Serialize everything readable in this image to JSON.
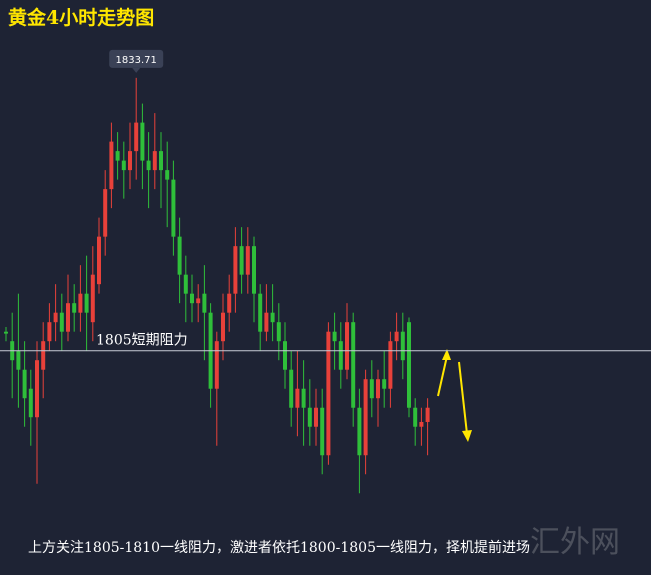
{
  "chart_data": {
    "type": "candlestick",
    "title": "黄金4小时走势图",
    "high_marker": 1833.71,
    "resistance": {
      "value": 1805,
      "label": "1805短期阻力"
    },
    "annotation": "上方关注1805-1810一线阻力，激进者依托1800-1805一线阻力，择机提前进场",
    "watermark": "汇外网",
    "up_color": "#e8413a",
    "down_color": "#2fbf3a",
    "ylim": [
      1781.4,
      1841.9
    ],
    "open": [
      1807,
      1806,
      1805,
      1803,
      1801,
      1798,
      1803,
      1806,
      1808,
      1809,
      1807,
      1810,
      1809,
      1811,
      1808,
      1812,
      1817,
      1822,
      1826,
      1825,
      1824,
      1826,
      1829,
      1825,
      1824,
      1826,
      1824,
      1823,
      1817,
      1813,
      1811,
      1810,
      1811,
      1809,
      1801,
      1806,
      1809,
      1811,
      1816,
      1813,
      1816,
      1811,
      1807,
      1809,
      1808,
      1806,
      1803,
      1799,
      1801,
      1799,
      1797,
      1799,
      1794,
      1807,
      1806,
      1803,
      1808,
      1799,
      1794,
      1802,
      1800,
      1802,
      1801,
      1806,
      1807,
      1808,
      1799,
      1797,
      1797.5
    ],
    "high": [
      1807.5,
      1809,
      1811,
      1806,
      1803,
      1806,
      1808,
      1810,
      1812,
      1811,
      1813,
      1812,
      1814,
      1815,
      1816,
      1819,
      1824,
      1829,
      1828,
      1827,
      1829,
      1833.71,
      1831,
      1828,
      1830,
      1828,
      1827,
      1825,
      1819,
      1815,
      1813,
      1812,
      1814,
      1810,
      1807,
      1811,
      1813,
      1818,
      1818,
      1818,
      1817,
      1812,
      1812,
      1812,
      1810,
      1808,
      1805,
      1805,
      1804,
      1802,
      1801,
      1801,
      1808,
      1809,
      1808,
      1810,
      1809,
      1801,
      1803,
      1804,
      1803,
      1805,
      1807,
      1809,
      1809,
      1808.5,
      1800,
      1799,
      1800
    ],
    "low": [
      1806,
      1800,
      1799,
      1797,
      1795,
      1791,
      1800,
      1805,
      1806,
      1805,
      1806,
      1807,
      1807,
      1805,
      1806,
      1811,
      1815,
      1820,
      1823,
      1821,
      1822,
      1823,
      1822,
      1820,
      1822,
      1820,
      1818,
      1815,
      1810,
      1808,
      1808,
      1808,
      1804,
      1799,
      1795,
      1804,
      1807,
      1809,
      1811,
      1811,
      1808,
      1805,
      1806,
      1806,
      1804,
      1801,
      1797,
      1796,
      1795,
      1795,
      1795,
      1792,
      1793,
      1803,
      1801,
      1802,
      1797,
      1790,
      1792,
      1798,
      1797,
      1799,
      1799,
      1804,
      1802,
      1798,
      1795,
      1795,
      1794
    ],
    "close": [
      1806.8,
      1804,
      1803,
      1800,
      1798,
      1804,
      1806,
      1808,
      1809,
      1807,
      1810,
      1809,
      1811,
      1809,
      1813,
      1817,
      1822,
      1827,
      1825,
      1824,
      1826,
      1829,
      1825,
      1824,
      1826,
      1824,
      1823,
      1817,
      1813,
      1811,
      1810,
      1810.5,
      1809,
      1801,
      1806,
      1809,
      1811,
      1816,
      1813,
      1816,
      1811,
      1807,
      1809,
      1808,
      1806,
      1803,
      1799,
      1801,
      1799,
      1797,
      1799,
      1794,
      1807,
      1806,
      1803,
      1808,
      1799,
      1794,
      1802,
      1800,
      1802,
      1801,
      1806,
      1807,
      1804,
      1799,
      1797,
      1797.5,
      1799
    ]
  }
}
